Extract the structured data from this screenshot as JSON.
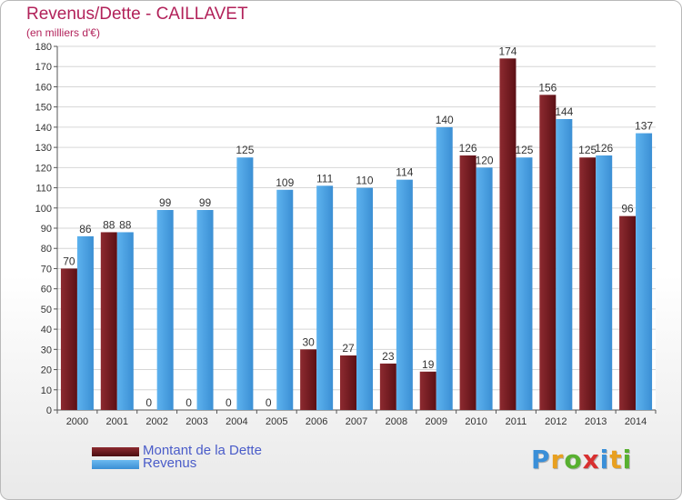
{
  "chart_data": {
    "type": "bar",
    "title": "Revenus/Dette - CAILLAVET",
    "subtitle": "(en milliers d'€)",
    "categories": [
      "2000",
      "2001",
      "2002",
      "2003",
      "2004",
      "2005",
      "2006",
      "2007",
      "2008",
      "2009",
      "2010",
      "2011",
      "2012",
      "2013",
      "2014"
    ],
    "series": [
      {
        "name": "Montant de la Dette",
        "color": "#7a1d22",
        "values": [
          70,
          88,
          0,
          0,
          0,
          0,
          30,
          27,
          23,
          19,
          126,
          174,
          156,
          125,
          96
        ]
      },
      {
        "name": "Revenus",
        "color": "#4a9fe0",
        "values": [
          86,
          88,
          99,
          99,
          125,
          109,
          111,
          110,
          114,
          140,
          120,
          125,
          144,
          126,
          137
        ]
      }
    ],
    "ylim": [
      0,
      180
    ],
    "yticks": [
      0,
      10,
      20,
      30,
      40,
      50,
      60,
      70,
      80,
      90,
      100,
      110,
      120,
      130,
      140,
      150,
      160,
      170,
      180
    ],
    "grid": true,
    "legend_position": "bottom-left"
  },
  "branding": {
    "logo_letters": [
      "P",
      "r",
      "o",
      "x",
      "i",
      "t",
      "i"
    ],
    "logo_colors": [
      "#3a8fd8",
      "#e8a020",
      "#58b030",
      "#d83030",
      "#3a8fd8",
      "#e8a020",
      "#58b030"
    ]
  }
}
